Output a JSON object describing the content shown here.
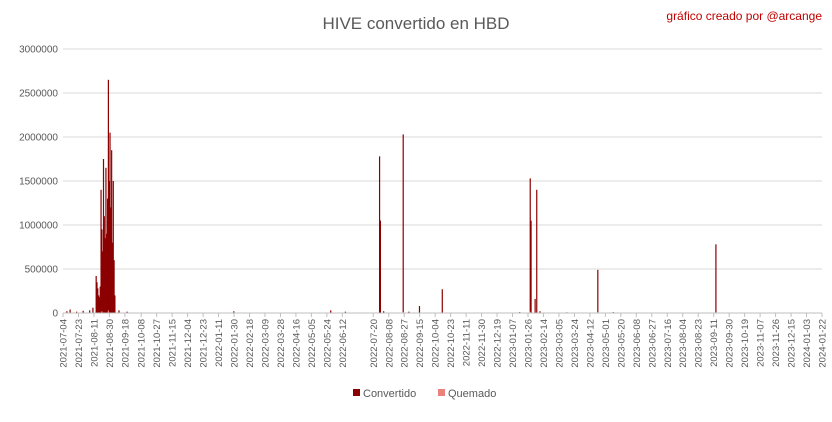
{
  "chart_data": {
    "type": "bar",
    "title": "HIVE convertido en HBD",
    "annotation": "gráfico creado por @arcange",
    "xlabel": "",
    "ylabel": "",
    "ylim": [
      0,
      3000000
    ],
    "yticks": [
      "0",
      "500000",
      "1000000",
      "1500000",
      "2000000",
      "2500000",
      "3000000"
    ],
    "grid": true,
    "legend_position": "bottom",
    "x_start": "2021-07-04",
    "x_end": "2024-01-22",
    "categories": [
      "2021-07-04",
      "2021-07-23",
      "2021-08-11",
      "2021-08-30",
      "2021-09-18",
      "2021-10-08",
      "2021-10-27",
      "2021-11-15",
      "2021-12-04",
      "2021-12-23",
      "2022-01-11",
      "2022-01-30",
      "2022-02-18",
      "2022-03-09",
      "2022-03-28",
      "2022-04-16",
      "2022-05-05",
      "2022-05-24",
      "2022-06-12",
      "2022-07-20",
      "2022-08-08",
      "2022-08-27",
      "2022-09-15",
      "2022-10-04",
      "2022-10-23",
      "2022-11-11",
      "2022-11-30",
      "2022-12-19",
      "2023-01-07",
      "2023-01-26",
      "2023-02-14",
      "2023-03-05",
      "2023-03-24",
      "2023-04-12",
      "2023-05-01",
      "2023-05-20",
      "2023-06-08",
      "2023-06-27",
      "2023-07-16",
      "2023-08-04",
      "2023-08-23",
      "2023-09-11",
      "2023-09-30",
      "2023-10-19",
      "2023-11-07",
      "2023-11-26",
      "2023-12-15",
      "2024-01-03",
      "2024-01-22"
    ],
    "series": [
      {
        "name": "Convertido",
        "color": "#8b0000",
        "points": [
          [
            "2021-07-08",
            20000
          ],
          [
            "2021-07-12",
            40000
          ],
          [
            "2021-07-20",
            15000
          ],
          [
            "2021-07-28",
            25000
          ],
          [
            "2021-08-05",
            30000
          ],
          [
            "2021-08-09",
            60000
          ],
          [
            "2021-08-13",
            420000
          ],
          [
            "2021-08-14",
            350000
          ],
          [
            "2021-08-15",
            280000
          ],
          [
            "2021-08-16",
            200000
          ],
          [
            "2021-08-17",
            180000
          ],
          [
            "2021-08-18",
            300000
          ],
          [
            "2021-08-19",
            1400000
          ],
          [
            "2021-08-20",
            950000
          ],
          [
            "2021-08-21",
            700000
          ],
          [
            "2021-08-22",
            1750000
          ],
          [
            "2021-08-23",
            1100000
          ],
          [
            "2021-08-24",
            850000
          ],
          [
            "2021-08-25",
            1650000
          ],
          [
            "2021-08-26",
            900000
          ],
          [
            "2021-08-27",
            1300000
          ],
          [
            "2021-08-28",
            2650000
          ],
          [
            "2021-08-29",
            1500000
          ],
          [
            "2021-08-30",
            2050000
          ],
          [
            "2021-08-31",
            1200000
          ],
          [
            "2021-09-01",
            1850000
          ],
          [
            "2021-09-02",
            800000
          ],
          [
            "2021-09-03",
            1500000
          ],
          [
            "2021-09-04",
            600000
          ],
          [
            "2021-09-05",
            200000
          ],
          [
            "2021-09-10",
            30000
          ],
          [
            "2021-09-20",
            15000
          ],
          [
            "2022-01-29",
            20000
          ],
          [
            "2022-05-28",
            30000
          ],
          [
            "2022-06-15",
            15000
          ],
          [
            "2022-07-27",
            1780000
          ],
          [
            "2022-07-28",
            1050000
          ],
          [
            "2022-08-01",
            20000
          ],
          [
            "2022-08-25",
            2030000
          ],
          [
            "2022-09-01",
            15000
          ],
          [
            "2022-09-14",
            80000
          ],
          [
            "2022-10-12",
            270000
          ],
          [
            "2023-01-15",
            10000
          ],
          [
            "2023-01-28",
            1530000
          ],
          [
            "2023-01-29",
            1050000
          ],
          [
            "2023-02-03",
            160000
          ],
          [
            "2023-02-05",
            1400000
          ],
          [
            "2023-02-09",
            20000
          ],
          [
            "2023-03-14",
            8000
          ],
          [
            "2023-04-21",
            490000
          ],
          [
            "2023-05-10",
            10000
          ],
          [
            "2023-09-13",
            780000
          ]
        ]
      },
      {
        "name": "Quemado",
        "color": "#e8827a",
        "points": [
          [
            "2021-08-20",
            20000
          ],
          [
            "2021-08-28",
            30000
          ],
          [
            "2022-08-25",
            10000
          ],
          [
            "2023-01-28",
            15000
          ],
          [
            "2023-04-21",
            10000
          ],
          [
            "2023-09-13",
            8000
          ]
        ]
      }
    ]
  }
}
